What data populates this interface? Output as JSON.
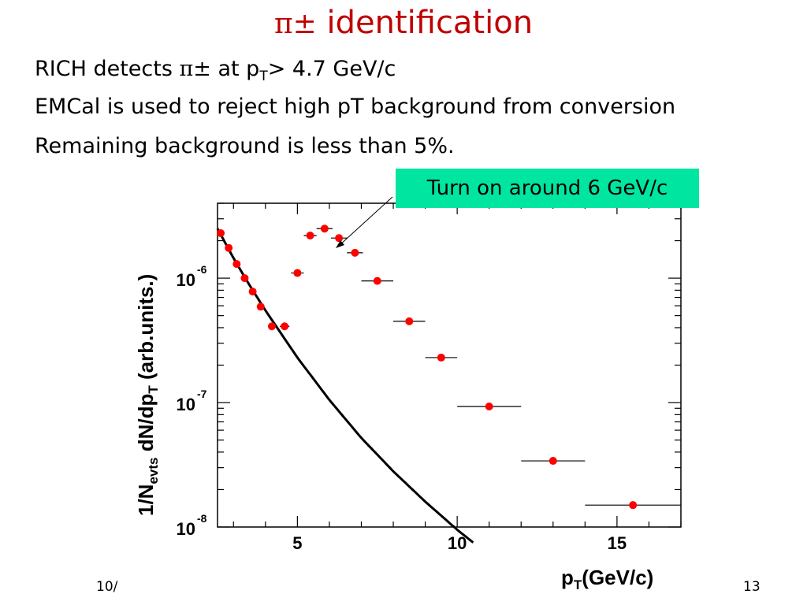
{
  "slide": {
    "title_symbol": "π±",
    "title_text": " identification",
    "bullets": {
      "b1_pre": "RICH detects ",
      "b1_pi": "π±",
      "b1_mid": " at p",
      "b1_sub": "T",
      "b1_post": "> 4.7 GeV/c",
      "b2": "EMCal is used to reject high pT background from conversion",
      "b3": "Remaining background is less than 5%."
    },
    "callout": "Turn on around 6 GeV/c",
    "footer_left": "10/",
    "footer_right": "13"
  },
  "chart_data": {
    "type": "scatter",
    "xlabel": "pT(GeV/c)",
    "ylabel": "1/Nevts dN/dpT (arb.units.)",
    "xlim": [
      2.5,
      17
    ],
    "ylim": [
      1e-08,
      4e-06
    ],
    "yscale": "log",
    "x_ticks": [
      5,
      10,
      15
    ],
    "y_ticks": [
      {
        "value": 1e-06,
        "base": "10",
        "exp": "-6"
      },
      {
        "value": 1e-07,
        "base": "10",
        "exp": "-7"
      },
      {
        "value": 1e-08,
        "base": "10",
        "exp": "-8"
      }
    ],
    "grid": false,
    "points": [
      {
        "x": 2.6,
        "y": 2.3e-06,
        "xerr": 0.08
      },
      {
        "x": 2.85,
        "y": 1.75e-06,
        "xerr": 0.08
      },
      {
        "x": 3.1,
        "y": 1.3e-06,
        "xerr": 0.08
      },
      {
        "x": 3.35,
        "y": 1e-06,
        "xerr": 0.08
      },
      {
        "x": 3.6,
        "y": 7.8e-07,
        "xerr": 0.08
      },
      {
        "x": 3.85,
        "y": 5.9e-07,
        "xerr": 0.08
      },
      {
        "x": 4.2,
        "y": 4.1e-07,
        "xerr": 0.12
      },
      {
        "x": 4.6,
        "y": 4.1e-07,
        "xerr": 0.15
      },
      {
        "x": 5.0,
        "y": 1.1e-06,
        "xerr": 0.2
      },
      {
        "x": 5.4,
        "y": 2.2e-06,
        "xerr": 0.2
      },
      {
        "x": 5.85,
        "y": 2.5e-06,
        "xerr": 0.25
      },
      {
        "x": 6.3,
        "y": 2.1e-06,
        "xerr": 0.25
      },
      {
        "x": 6.8,
        "y": 1.6e-06,
        "xerr": 0.25
      },
      {
        "x": 7.5,
        "y": 9.5e-07,
        "xerr": 0.5
      },
      {
        "x": 8.5,
        "y": 4.5e-07,
        "xerr": 0.5
      },
      {
        "x": 9.5,
        "y": 2.3e-07,
        "xerr": 0.5
      },
      {
        "x": 11.0,
        "y": 9.3e-08,
        "xerr": 1.0
      },
      {
        "x": 13.0,
        "y": 3.4e-08,
        "xerr": 1.0
      },
      {
        "x": 15.5,
        "y": 1.5e-08,
        "xerr": 1.5
      }
    ],
    "fit_curve": {
      "x": [
        2.5,
        3,
        3.5,
        4,
        5,
        6,
        7,
        8,
        9,
        10,
        10.5
      ],
      "y": [
        2.5e-06,
        1.45e-06,
        8.8e-07,
        5.5e-07,
        2.3e-07,
        1.05e-07,
        5.2e-08,
        2.8e-08,
        1.6e-08,
        9.5e-09,
        7.5e-09
      ]
    },
    "marker_color": "#ff0000"
  }
}
